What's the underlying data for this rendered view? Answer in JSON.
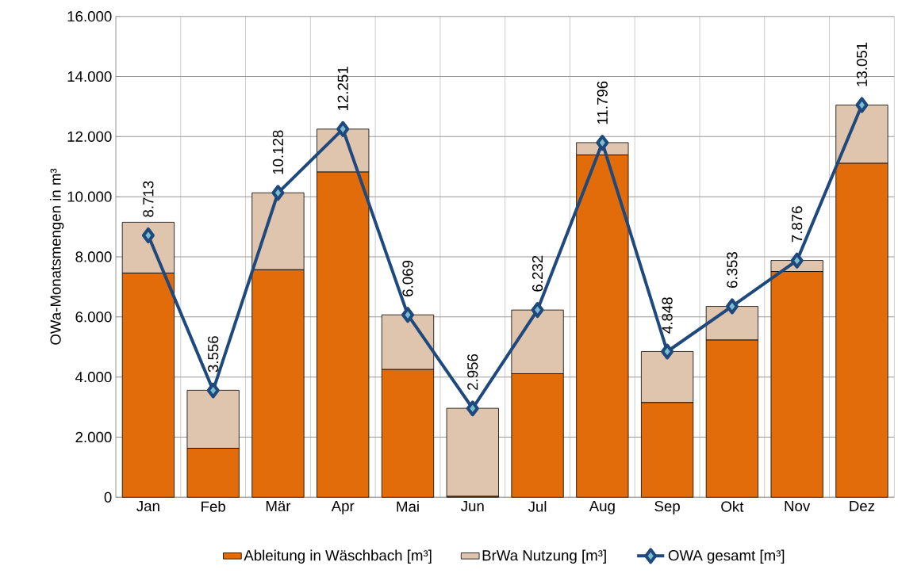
{
  "chart_data": {
    "type": "bar",
    "stacked": true,
    "ylabel": "OWa-Monatsmengen in m³",
    "categories": [
      "Jan",
      "Feb",
      "Mär",
      "Apr",
      "Mai",
      "Jun",
      "Jul",
      "Aug",
      "Sep",
      "Okt",
      "Nov",
      "Dez"
    ],
    "series": [
      {
        "name": "Ableitung in Wäschbach [m³]",
        "color": "#e36c0a",
        "values": [
          7460,
          1630,
          7570,
          10820,
          4250,
          30,
          4110,
          11390,
          3150,
          5230,
          7510,
          11110
        ]
      },
      {
        "name": "BrWa Nutzung [m³]",
        "color": "#e0c5ae",
        "values": [
          1690,
          1930,
          2560,
          1430,
          1820,
          2930,
          2120,
          410,
          1700,
          1120,
          370,
          1940
        ]
      },
      {
        "name": "OWA gesamt [m³]",
        "type": "line",
        "color": "#1f497d",
        "marker": "diamond",
        "values": [
          8713,
          3556,
          10128,
          12251,
          6069,
          2956,
          6232,
          11796,
          4848,
          6353,
          7876,
          13051
        ],
        "value_labels": [
          "8.713",
          "3.556",
          "10.128",
          "12.251",
          "6.069",
          "2.956",
          "6.232",
          "11.796",
          "4.848",
          "6.353",
          "7.876",
          "13.051"
        ]
      }
    ],
    "ylim": [
      0,
      16000
    ],
    "yticks": [
      0,
      {
        "value": 2000,
        "label": "2.000"
      },
      {
        "value": 4000,
        "label": "4.000"
      },
      {
        "value": 6000,
        "label": "6.000"
      },
      {
        "value": 8000,
        "label": "8.000"
      },
      {
        "value": 10000,
        "label": "10.000"
      },
      {
        "value": 12000,
        "label": "12.000"
      },
      {
        "value": 14000,
        "label": "14.000"
      },
      {
        "value": 16000,
        "label": "16.000"
      }
    ],
    "grid": true,
    "legend": "bottom"
  }
}
